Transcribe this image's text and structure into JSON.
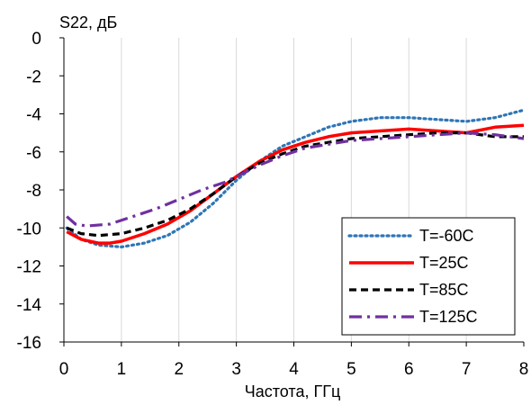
{
  "chart_data": {
    "type": "line",
    "xlabel": "Частота, ГГц",
    "ylabel": "S22, дБ",
    "xlim": [
      0,
      8
    ],
    "ylim": [
      -16,
      0
    ],
    "xticks": [
      0,
      1,
      2,
      3,
      4,
      5,
      6,
      7,
      8
    ],
    "yticks": [
      0,
      -2,
      -4,
      -6,
      -8,
      -10,
      -12,
      -14,
      -16
    ],
    "grid": "vertical",
    "legend_position": "bottom-right",
    "series": [
      {
        "name": "T=-60C",
        "color": "#2E75B6",
        "dash": "dotted",
        "x": [
          0.05,
          0.3,
          0.6,
          1.0,
          1.4,
          1.8,
          2.2,
          2.6,
          3.0,
          3.4,
          3.8,
          4.2,
          4.6,
          5.0,
          5.5,
          6.0,
          6.5,
          7.0,
          7.5,
          8.0
        ],
        "y": [
          -10.0,
          -10.6,
          -10.9,
          -11.0,
          -10.8,
          -10.4,
          -9.7,
          -8.7,
          -7.5,
          -6.5,
          -5.7,
          -5.2,
          -4.7,
          -4.4,
          -4.2,
          -4.2,
          -4.3,
          -4.4,
          -4.2,
          -3.8
        ]
      },
      {
        "name": "T=25C",
        "color": "#FF0000",
        "dash": "solid",
        "x": [
          0.05,
          0.3,
          0.6,
          0.8,
          1.0,
          1.4,
          1.8,
          2.2,
          2.6,
          3.0,
          3.4,
          3.8,
          4.2,
          4.6,
          5.0,
          5.5,
          6.0,
          6.5,
          7.0,
          7.5,
          8.0
        ],
        "y": [
          -10.2,
          -10.6,
          -10.8,
          -10.8,
          -10.7,
          -10.3,
          -9.8,
          -9.1,
          -8.2,
          -7.3,
          -6.5,
          -5.9,
          -5.5,
          -5.2,
          -5.0,
          -4.9,
          -4.8,
          -4.9,
          -5.0,
          -4.7,
          -4.6
        ]
      },
      {
        "name": "T=85C",
        "color": "#000000",
        "dash": "dashed",
        "x": [
          0.05,
          0.3,
          0.6,
          1.0,
          1.4,
          1.8,
          2.2,
          2.6,
          3.0,
          3.4,
          3.8,
          4.2,
          4.6,
          5.0,
          5.5,
          6.0,
          6.5,
          7.0,
          7.5,
          8.0
        ],
        "y": [
          -10.0,
          -10.3,
          -10.4,
          -10.3,
          -10.0,
          -9.6,
          -9.0,
          -8.2,
          -7.3,
          -6.6,
          -6.1,
          -5.7,
          -5.5,
          -5.3,
          -5.2,
          -5.1,
          -5.0,
          -5.0,
          -5.2,
          -5.2
        ]
      },
      {
        "name": "T=125C",
        "color": "#7030A0",
        "dash": "dash-dot",
        "x": [
          0.05,
          0.2,
          0.4,
          0.8,
          1.2,
          1.6,
          2.0,
          2.4,
          2.8,
          3.0,
          3.4,
          3.8,
          4.2,
          4.6,
          5.0,
          5.5,
          6.0,
          6.5,
          7.0,
          7.5,
          8.0
        ],
        "y": [
          -9.4,
          -9.8,
          -9.9,
          -9.8,
          -9.4,
          -9.0,
          -8.5,
          -8.0,
          -7.6,
          -7.3,
          -6.7,
          -6.2,
          -5.8,
          -5.6,
          -5.4,
          -5.3,
          -5.2,
          -5.1,
          -5.0,
          -5.1,
          -5.3
        ]
      }
    ]
  }
}
